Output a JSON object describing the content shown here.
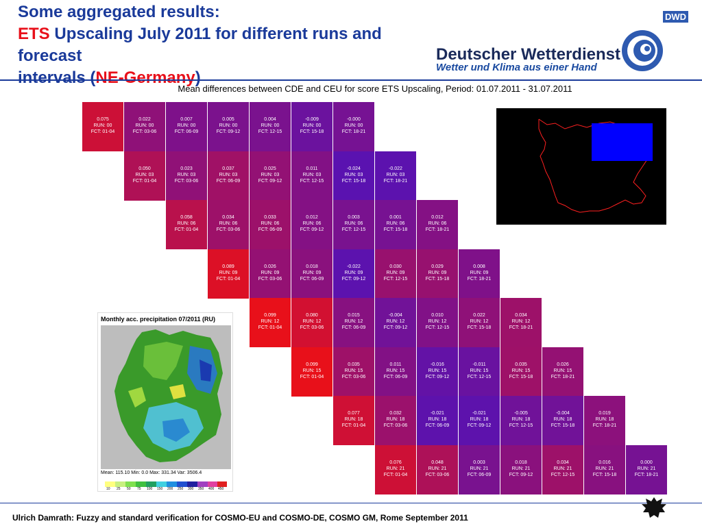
{
  "header": {
    "title_line1": "Some aggregated results:",
    "title_ets": "ETS",
    "title_line2_rest": " Upscaling July 2011 for different runs and forecast",
    "title_line3_start": "intervals (",
    "title_region": "NE-Germany",
    "title_line3_end": ")"
  },
  "logo": {
    "abbr": "DWD",
    "name": "Deutscher Wetterdienst",
    "tagline": "Wetter und Klima aus einer Hand"
  },
  "chart_title": "Mean differences between CDE and CEU for score ETS Upscaling, Period: 01.07.2011 - 31.07.2011",
  "colors": {
    "brand_blue": "#1a3a9a",
    "accent_red": "#e8101a",
    "high": "#e8101a",
    "low": "#5a12b0"
  },
  "chart_data": {
    "type": "heatmap",
    "title": "Mean differences between CDE and CEU for score ETS Upscaling, Period: 01.07.2011 - 31.07.2011",
    "run_prefix": "RUN: ",
    "fct_prefix": "FCT: ",
    "fct_intervals": [
      "01-04",
      "03-06",
      "06-09",
      "09-12",
      "12-15",
      "15-18",
      "18-21"
    ],
    "rows": [
      {
        "run": "00",
        "values": [
          0.075,
          0.022,
          0.007,
          0.005,
          0.004,
          -0.009,
          -0.0
        ],
        "labels": [
          "0.075",
          "0.022",
          "0.007",
          "0.005",
          "0.004",
          "-0.009",
          "-0.000"
        ]
      },
      {
        "run": "03",
        "values": [
          0.05,
          0.023,
          0.037,
          0.025,
          0.011,
          -0.024,
          -0.022
        ],
        "labels": [
          "0.050",
          "0.023",
          "0.037",
          "0.025",
          "0.011",
          "-0.024",
          "-0.022"
        ]
      },
      {
        "run": "06",
        "values": [
          0.058,
          0.034,
          0.033,
          0.012,
          0.003,
          0.001,
          0.012
        ],
        "labels": [
          "0.058",
          "0.034",
          "0.033",
          "0.012",
          "0.003",
          "0.001",
          "0.012"
        ]
      },
      {
        "run": "09",
        "values": [
          0.089,
          0.026,
          0.018,
          -0.022,
          0.03,
          0.029,
          0.008
        ],
        "labels": [
          "0.089",
          "0.026",
          "0.018",
          "-0.022",
          "0.030",
          "0.029",
          "0.008"
        ]
      },
      {
        "run": "12",
        "values": [
          0.099,
          0.08,
          0.015,
          -0.004,
          0.01,
          0.022,
          0.034
        ],
        "labels": [
          "0.099",
          "0.080",
          "0.015",
          "-0.004",
          "0.010",
          "0.022",
          "0.034"
        ]
      },
      {
        "run": "15",
        "values": [
          0.099,
          0.035,
          0.011,
          -0.016,
          -0.011,
          0.035,
          0.026
        ],
        "labels": [
          "0.099",
          "0.035",
          "0.011",
          "-0.016",
          "-0.011",
          "0.035",
          "0.026"
        ]
      },
      {
        "run": "18",
        "values": [
          0.077,
          0.032,
          -0.021,
          -0.021,
          -0.005,
          -0.004,
          0.019
        ],
        "labels": [
          "0.077",
          "0.032",
          "-0.021",
          "-0.021",
          "-0.005",
          "-0.004",
          "0.019"
        ]
      },
      {
        "run": "21",
        "values": [
          0.076,
          0.048,
          0.003,
          0.018,
          0.034,
          0.016,
          0.0
        ],
        "labels": [
          "0.076",
          "0.048",
          "0.003",
          "0.018",
          "0.034",
          "0.016",
          "0.000"
        ]
      }
    ]
  },
  "precip_map": {
    "title": "Monthly acc. precipitation 07/2011 (RU)",
    "stats": "Mean: 115.10  Min: 0.0        Max: 331.34   Var: 3506.4",
    "legend_ticks": [
      "10",
      "25",
      "50",
      "75",
      "100",
      "150",
      "200",
      "250",
      "300",
      "350",
      "400",
      "450"
    ]
  },
  "footer": {
    "text": "Ulrich Damrath: Fuzzy and standard verification for COSMO-EU and COSMO-DE, COSMO GM, Rome September 2011"
  }
}
